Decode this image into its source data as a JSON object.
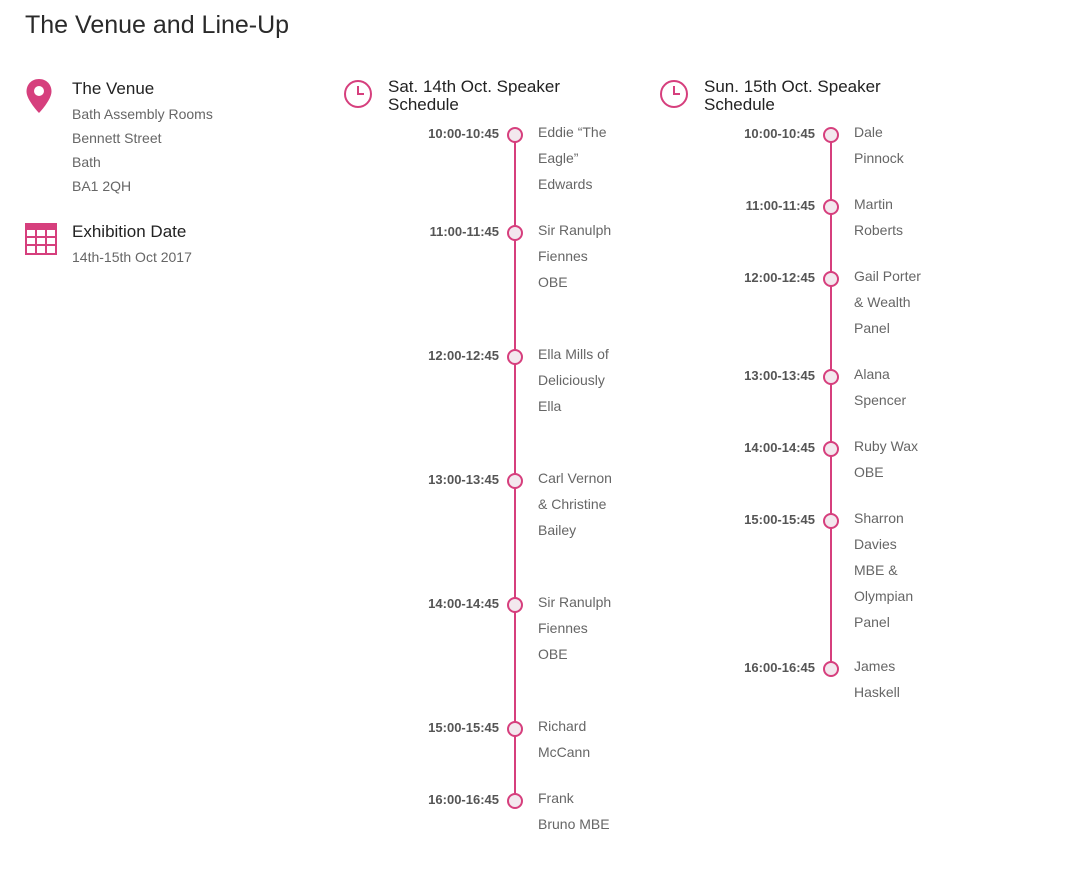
{
  "page": {
    "title": "The Venue and Line-Up"
  },
  "colors": {
    "accent": "#d63f7d",
    "text_muted": "#666666",
    "heading": "#222222"
  },
  "venue": {
    "icon": "map-pin-icon",
    "heading": "The Venue",
    "lines": [
      "Bath Assembly Rooms",
      "Bennett Street",
      "Bath",
      "BA1 2QH"
    ]
  },
  "exhibition": {
    "icon": "calendar-icon",
    "heading": "Exhibition Date",
    "dates": "14th-15th Oct 2017"
  },
  "saturday": {
    "icon": "clock-icon",
    "title": "Sat. 14th Oct. Speaker Schedule",
    "slots": [
      {
        "time": "10:00-10:45",
        "speaker": "Eddie “The Eagle” Edwards"
      },
      {
        "time": "11:00-11:45",
        "speaker": "Sir Ranulph Fiennes OBE"
      },
      {
        "time": "12:00-12:45",
        "speaker": "Ella Mills of Deliciously Ella"
      },
      {
        "time": "13:00-13:45",
        "speaker": "Carl Vernon & Christine Bailey"
      },
      {
        "time": "14:00-14:45",
        "speaker": "Sir Ranulph Fiennes OBE"
      },
      {
        "time": "15:00-15:45",
        "speaker": "Richard McCann"
      },
      {
        "time": "16:00-16:45",
        "speaker": "Frank Bruno MBE"
      }
    ]
  },
  "sunday": {
    "icon": "clock-icon",
    "title": "Sun. 15th Oct. Speaker Schedule",
    "slots": [
      {
        "time": "10:00-10:45",
        "speaker": "Dale Pinnock"
      },
      {
        "time": "11:00-11:45",
        "speaker": "Martin Roberts"
      },
      {
        "time": "12:00-12:45",
        "speaker": "Gail Porter & Wealth Panel"
      },
      {
        "time": "13:00-13:45",
        "speaker": "Alana Spencer"
      },
      {
        "time": "14:00-14:45",
        "speaker": "Ruby Wax OBE"
      },
      {
        "time": "15:00-15:45",
        "speaker": "Sharron Davies MBE & Olympian Panel"
      },
      {
        "time": "16:00-16:45",
        "speaker": "James Haskell"
      }
    ]
  }
}
